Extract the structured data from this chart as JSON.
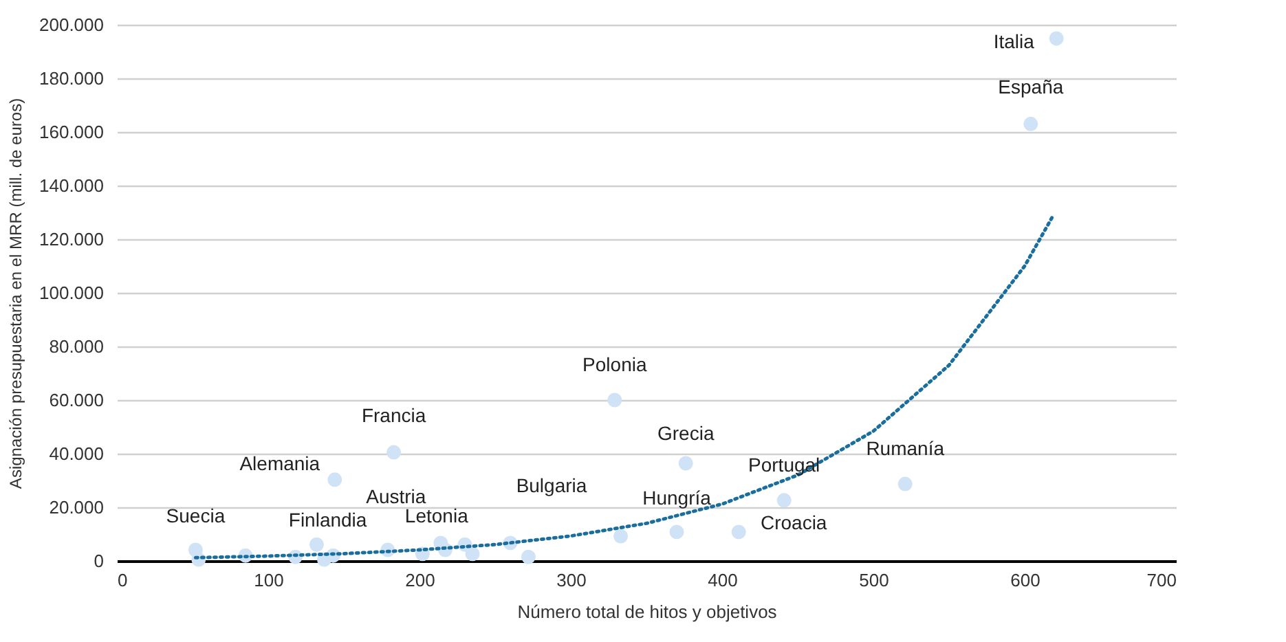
{
  "chart_data": {
    "type": "scatter",
    "xlabel": "Número total de hitos y objetivos",
    "ylabel": "Asignación presupuestaria en el MRR (mill. de euros)",
    "xlim": [
      0,
      700
    ],
    "xticks": [
      0,
      100,
      200,
      300,
      400,
      500,
      600,
      700
    ],
    "ylim": [
      0,
      200000
    ],
    "yticks": [
      {
        "value": 0,
        "label": "0"
      },
      {
        "value": 20000,
        "label": "20.000"
      },
      {
        "value": 40000,
        "label": "40.000"
      },
      {
        "value": 60000,
        "label": "60.000"
      },
      {
        "value": 80000,
        "label": "80.000"
      },
      {
        "value": 100000,
        "label": "100.000"
      },
      {
        "value": 120000,
        "label": "120.000"
      },
      {
        "value": 140000,
        "label": "140.000"
      },
      {
        "value": 160000,
        "label": "160.000"
      },
      {
        "value": 180000,
        "label": "180.000"
      },
      {
        "value": 200000,
        "label": "200.000"
      }
    ],
    "grid": "y",
    "marker": "circle",
    "series": [
      {
        "color": "#cfe2f6",
        "x": [
          621,
          604,
          329,
          183,
          144,
          376,
          441,
          521,
          370,
          411,
          333,
          272,
          52,
          54,
          85,
          118,
          132,
          137,
          143,
          179,
          202,
          214,
          217,
          230,
          235,
          260
        ],
        "values": [
          194900,
          163000,
          60000,
          40500,
          30300,
          36400,
          22600,
          28700,
          10800,
          10800,
          9200,
          1500,
          4100,
          500,
          2000,
          1500,
          6100,
          500,
          2000,
          4100,
          2600,
          6700,
          4100,
          6100,
          2600,
          6700
        ]
      },
      {
        "type": "line",
        "color": "#1a6e9e",
        "line_style": "dotted",
        "marker": "none",
        "x": [
          52,
          100,
          150,
          200,
          250,
          300,
          350,
          400,
          450,
          500,
          550,
          600,
          618
        ],
        "values": [
          1200,
          1800,
          2700,
          4100,
          6100,
          9300,
          14000,
          21200,
          32000,
          48400,
          73000,
          110000,
          128000
        ]
      }
    ],
    "annotations": [
      {
        "text": "Italia",
        "x": 621,
        "y": 194900
      },
      {
        "text": "España",
        "x": 604,
        "y": 163000
      },
      {
        "text": "Polonia",
        "x": 329,
        "y": 60000
      },
      {
        "text": "Francia",
        "x": 183,
        "y": 40500
      },
      {
        "text": "Alemania",
        "x": 144,
        "y": 30300
      },
      {
        "text": "Grecia",
        "x": 376,
        "y": 36400
      },
      {
        "text": "Portugal",
        "x": 441,
        "y": 22600
      },
      {
        "text": "Rumanía",
        "x": 521,
        "y": 28700
      },
      {
        "text": "Hungría",
        "x": 370,
        "y": 10800
      },
      {
        "text": "Croacia",
        "x": 411,
        "y": 10800
      },
      {
        "text": "Suecia",
        "x": 52,
        "y": 4100
      },
      {
        "text": "Finlandia",
        "x": 143,
        "y": 2000
      },
      {
        "text": "Austria",
        "x": 179,
        "y": 4100
      },
      {
        "text": "Letonia",
        "x": 214,
        "y": 6700
      },
      {
        "text": "Bulgaria",
        "x": 260,
        "y": 6700
      }
    ]
  }
}
